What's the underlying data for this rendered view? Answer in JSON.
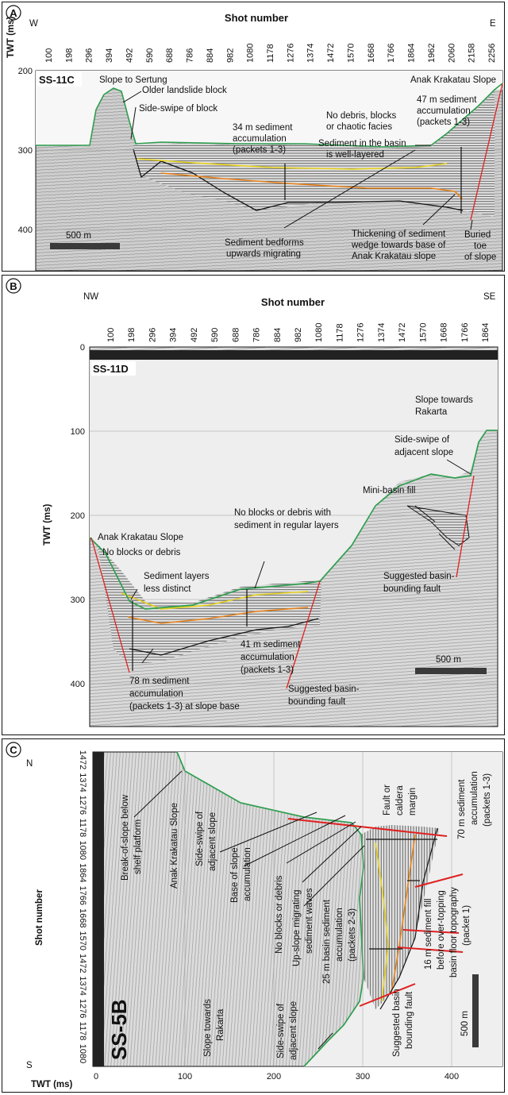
{
  "panels": {
    "A": {
      "letter": "A",
      "dir_left": "W",
      "dir_right": "E",
      "x_title": "Shot number",
      "y_title": "TWT (ms)",
      "line_name": "SS-11C",
      "shots": [
        "100",
        "198",
        "296",
        "394",
        "492",
        "590",
        "688",
        "786",
        "884",
        "982",
        "1080",
        "1178",
        "1276",
        "1374",
        "1472",
        "1570",
        "1668",
        "1766",
        "1864",
        "1962",
        "2060",
        "2158",
        "2256"
      ],
      "twt_ticks": [
        "200",
        "300",
        "400"
      ],
      "scale_label": "500 m",
      "notes": {
        "slope_sertung": "Slope to Sertung",
        "older_block": "Older landslide block",
        "side_swipe": "Side-swipe of block",
        "acc34_1": "34 m sediment",
        "acc34_2": "accumulation",
        "acc34_3": "(packets 1-3)",
        "no_debris_1": "No debris, blocks",
        "no_debris_2": "or chaotic facies",
        "anak_slope": "Anak Krakatau Slope",
        "acc47_1": "47 m sediment",
        "acc47_2": "accumulation",
        "acc47_3": "(packets 1-3)",
        "basin_1": "Sediment in the basin",
        "basin_2": "is well-layered",
        "bedforms_1": "Sediment bedforms",
        "bedforms_2": "upwards migrating",
        "thick_1": "Thickening of sediment",
        "thick_2": "wedge towards base of",
        "thick_3": "Anak Krakatau slope",
        "toe_1": "Buried",
        "toe_2": "toe",
        "toe_3": "of slope"
      }
    },
    "B": {
      "letter": "B",
      "dir_left": "NW",
      "dir_right": "SE",
      "x_title": "Shot number",
      "y_title": "TWT (ms)",
      "line_name": "SS-11D",
      "shots": [
        "100",
        "198",
        "296",
        "394",
        "492",
        "590",
        "688",
        "786",
        "884",
        "982",
        "1080",
        "1178",
        "1276",
        "1374",
        "1472",
        "1570",
        "1668",
        "1766",
        "1864"
      ],
      "twt_ticks": [
        "0",
        "100",
        "200",
        "300",
        "400"
      ],
      "scale_label": "500 m",
      "notes": {
        "slope_rakarta_1": "Slope towards",
        "slope_rakarta_2": "Rakarta",
        "side_swipe_1": "Side-swipe of",
        "side_swipe_2": "adjacent slope",
        "mini_basin": "Mini-basin fill",
        "no_blocks_1": "No blocks or debris with",
        "no_blocks_2": "sediment in regular layers",
        "anak_slope": "Anak Krakatau Slope",
        "no_debris": "No blocks or debris",
        "less_distinct_1": "Sediment layers",
        "less_distinct_2": "less distinct",
        "acc41_1": "41 m sediment",
        "acc41_2": "accumulation",
        "acc41_3": "(packets 1-3)",
        "acc78_1": "78 m sediment",
        "acc78_2": "accumulation",
        "acc78_3": "(packets 1-3) at slope base",
        "fault_1": "Suggested basin-",
        "fault_2": "bounding fault",
        "fault2_1": "Suggested basin-",
        "fault2_2": "bounding fault"
      }
    },
    "C": {
      "letter": "C",
      "dir_top": "N",
      "dir_bottom": "S",
      "y_title": "Shot number",
      "x_title": "TWT (ms)",
      "line_name": "SS-5B",
      "shots": [
        "1472",
        "1374",
        "1276",
        "1178",
        "1080",
        "1864",
        "1766",
        "1668",
        "1570",
        "1472",
        "1374",
        "1276",
        "1178",
        "1080"
      ],
      "twt_ticks": [
        "0",
        "100",
        "200",
        "300",
        "400"
      ],
      "scale_label": "500 m",
      "notes": {
        "break_1": "Break-of-slope below",
        "break_2": "shelf platform",
        "anak_slope": "Anak Krakatau Slope",
        "side_swipe_1": "Side-swipe of",
        "side_swipe_2": "adjacent slope",
        "base_acc_1": "Base of slope",
        "base_acc_2": "accumulation",
        "no_debris": "No blocks or debris",
        "upslope_1": "Up-slope migrating",
        "upslope_2": "sediment waves",
        "acc25_1": "25 m basin sediment",
        "acc25_2": "accumulation",
        "acc25_3": "(packets 2-3)",
        "fault_1": "Fault or",
        "fault_2": "caldera",
        "fault_3": "margin",
        "acc70_1": "70 m sediment",
        "acc70_2": "accumulation",
        "acc70_3": "(packets 1-3)",
        "acc16_1": "16 m sediment fill",
        "acc16_2": "before over-topping",
        "acc16_3": "basin floor topography",
        "acc16_4": "(packet 1)",
        "slope_rakarta_1": "Slope towards",
        "slope_rakarta_2": "Rakarta",
        "side_swipe2_1": "Side-swipe of",
        "side_swipe2_2": "adjacent slope",
        "fault2_1": "Suggested basin",
        "fault2_2": "bounding fault"
      }
    }
  },
  "colors": {
    "seafloor": "#2e9e4f",
    "horizon_yellow": "#e8d21a",
    "horizon_orange": "#e8821a",
    "fault_red": "#e02020",
    "seismic_gray": "#b8b8b8"
  }
}
